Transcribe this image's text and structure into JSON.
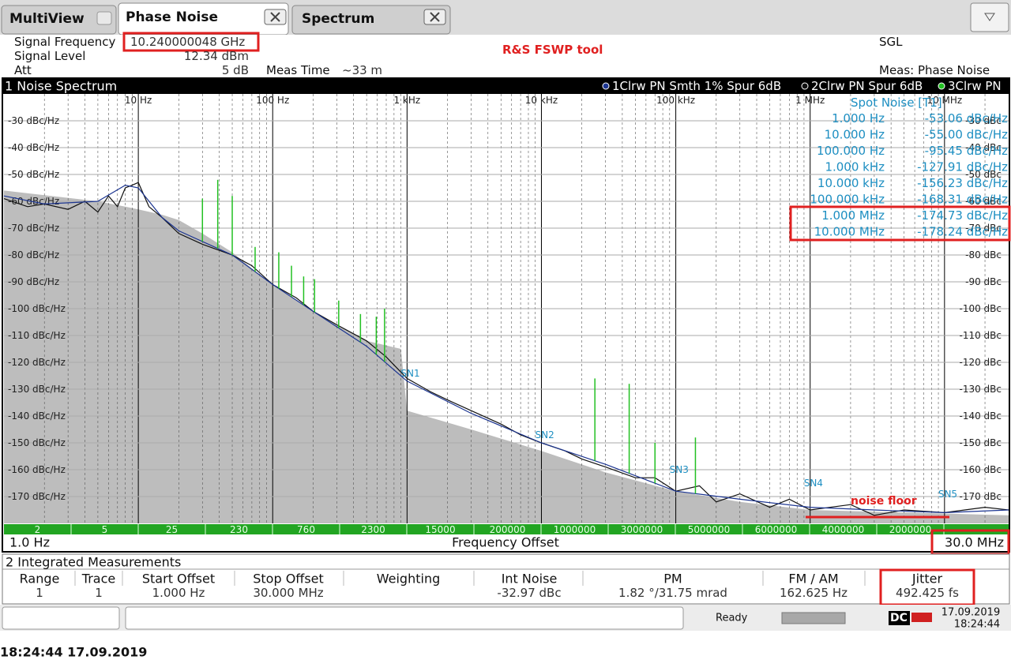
{
  "tabs": [
    "MultiView",
    "Phase Noise",
    "Spectrum"
  ],
  "header": {
    "signal_frequency_label": "Signal Frequency",
    "signal_frequency": "10.240000048 GHz",
    "signal_level_label": "Signal Level",
    "signal_level": "12.34 dBm",
    "att_label": "Att",
    "att": "5 dB",
    "meas_time_label": "Meas Time",
    "meas_time": "~33 m",
    "annotation": "R&S FSWP tool",
    "mode": "SGL",
    "meas": "Meas: Phase Noise"
  },
  "chart": {
    "type": "line",
    "title": "1 Noise Spectrum",
    "xscale": "log",
    "minor_grid": true,
    "xlim": [
      1,
      30000000
    ],
    "xticks": [
      {
        "value": 10,
        "label": "10 Hz"
      },
      {
        "value": 100,
        "label": "100 Hz"
      },
      {
        "value": 1000,
        "label": "1 kHz"
      },
      {
        "value": 10000,
        "label": "10 kHz"
      },
      {
        "value": 100000,
        "label": "100 kHz"
      },
      {
        "value": 1000000,
        "label": "1 MHz"
      },
      {
        "value": 10000000,
        "label": "10 MHz"
      }
    ],
    "ylim": [
      -180,
      -20
    ],
    "yticks": [
      {
        "value": -30,
        "label": "-30 dBc/Hz"
      },
      {
        "value": -40,
        "label": "-40 dBc/Hz"
      },
      {
        "value": -50,
        "label": "-50 dBc/Hz"
      },
      {
        "value": -60,
        "label": "-60 dBc/Hz"
      },
      {
        "value": -70,
        "label": "-70 dBc/Hz"
      },
      {
        "value": -80,
        "label": "-80 dBc/Hz"
      },
      {
        "value": -90,
        "label": "-90 dBc/Hz"
      },
      {
        "value": -100,
        "label": "-100 dBc/Hz"
      },
      {
        "value": -110,
        "label": "-110 dBc/Hz"
      },
      {
        "value": -120,
        "label": "-120 dBc/Hz"
      },
      {
        "value": -130,
        "label": "-130 dBc/Hz"
      },
      {
        "value": -140,
        "label": "-140 dBc/Hz"
      },
      {
        "value": -150,
        "label": "-150 dBc/Hz"
      },
      {
        "value": -160,
        "label": "-160 dBc/Hz"
      },
      {
        "value": -170,
        "label": "-170 dBc/Hz"
      }
    ],
    "y2ticks": [
      {
        "value": -30,
        "label": "-30 dBc"
      },
      {
        "value": -40,
        "label": "-40 dBc"
      },
      {
        "value": -50,
        "label": "-50 dBc"
      },
      {
        "value": -60,
        "label": "-60 dBc"
      },
      {
        "value": -70,
        "label": "-70 dBc"
      },
      {
        "value": -80,
        "label": "-80 dBc"
      },
      {
        "value": -90,
        "label": "-90 dBc"
      },
      {
        "value": -100,
        "label": "-100 dBc"
      },
      {
        "value": -110,
        "label": "-110 dBc"
      },
      {
        "value": -120,
        "label": "-120 dBc"
      },
      {
        "value": -130,
        "label": "-130 dBc"
      },
      {
        "value": -140,
        "label": "-140 dBc"
      },
      {
        "value": -150,
        "label": "-150 dBc"
      },
      {
        "value": -160,
        "label": "-160 dBc"
      },
      {
        "value": -170,
        "label": "-170 dBc"
      }
    ],
    "area": {
      "color": "#bdbdbd",
      "x": [
        1,
        5,
        8,
        10,
        15,
        20,
        30,
        50,
        70,
        100,
        150,
        200,
        300,
        500,
        900,
        1000,
        3000,
        10000,
        30000,
        100000,
        300000,
        1000000,
        30000000
      ],
      "values": [
        -56,
        -60,
        -62,
        -63,
        -65,
        -67,
        -72,
        -79,
        -85,
        -91,
        -97,
        -101,
        -106,
        -112,
        -115,
        -138,
        -145,
        -153,
        -161,
        -168,
        -172,
        -175,
        -177
      ]
    },
    "series": [
      {
        "name": "1Clrw PN Smth 1% Spur 6dB",
        "color": "#1c3591",
        "x": [
          1,
          2,
          5,
          8,
          10,
          15,
          20,
          50,
          100,
          200,
          500,
          1000,
          3000,
          10000,
          30000,
          100000,
          300000,
          1000000,
          3000000,
          10000000,
          30000000
        ],
        "values": [
          -58,
          -61,
          -60,
          -54,
          -55,
          -66,
          -71,
          -80,
          -91,
          -101,
          -114,
          -127,
          -139,
          -150,
          -158,
          -168,
          -171,
          -174,
          -175,
          -176,
          -175
        ]
      },
      {
        "name": "2Clrw PN Spur 6dB",
        "color": "#111111",
        "x": [
          1,
          1.5,
          2,
          3,
          4,
          5,
          6,
          7,
          8,
          9,
          10,
          12,
          15,
          20,
          30,
          50,
          70,
          100,
          150,
          200,
          300,
          500,
          700,
          1000,
          1500,
          2000,
          3000,
          5000,
          7000,
          10000,
          15000,
          20000,
          30000,
          50000,
          70000,
          100000,
          150000,
          200000,
          300000,
          500000,
          700000,
          1000000,
          2000000,
          3000000,
          5000000,
          10000000,
          20000000,
          30000000
        ],
        "values": [
          -59,
          -62,
          -61,
          -63,
          -60,
          -64,
          -58,
          -62,
          -55,
          -54,
          -53,
          -62,
          -66,
          -72,
          -76,
          -80,
          -84,
          -91,
          -96,
          -101,
          -106,
          -112,
          -118,
          -126,
          -131,
          -134,
          -138,
          -143,
          -147,
          -150,
          -153,
          -156,
          -159,
          -163,
          -163,
          -168,
          -166,
          -172,
          -169,
          -174,
          -171,
          -175,
          -173,
          -177,
          -175,
          -176,
          -174,
          -175
        ]
      },
      {
        "name": "3Clrw PN",
        "color": "#22c022",
        "kind": "spur",
        "x": [
          30,
          39,
          50,
          74,
          111,
          138,
          170,
          205,
          310,
          450,
          590,
          680,
          25000,
          45000,
          70000,
          140000
        ],
        "values": [
          -59,
          -52,
          -58,
          -77,
          -79,
          -84,
          -88,
          -89,
          -97,
          -102,
          -103,
          -100,
          -126,
          -128,
          -150,
          -148
        ]
      }
    ],
    "markers": [
      {
        "label": "SN1",
        "x": 1000,
        "y": -127
      },
      {
        "label": "SN2",
        "x": 10000,
        "y": -150
      },
      {
        "label": "SN3",
        "x": 100000,
        "y": -163
      },
      {
        "label": "SN4",
        "x": 1000000,
        "y": -168
      },
      {
        "label": "SN5",
        "x": 10000000,
        "y": -172
      }
    ],
    "spot_noise": {
      "title": "Spot Noise [T1]",
      "rows": [
        [
          "1.000 Hz",
          "-53.06 dBc/Hz"
        ],
        [
          "10.000 Hz",
          "-55.00 dBc/Hz"
        ],
        [
          "100.000 Hz",
          "-95.45 dBc/Hz"
        ],
        [
          "1.000 kHz",
          "-127.91 dBc/Hz"
        ],
        [
          "10.000 kHz",
          "-156.23 dBc/Hz"
        ],
        [
          "100.000 kHz",
          "-168.31 dBc/Hz"
        ],
        [
          "1.000 MHz",
          "-174.73 dBc/Hz"
        ],
        [
          "10.000 MHz",
          "-178.24 dBc/Hz"
        ]
      ]
    },
    "annotation": "noise floor",
    "bin_labels": [
      "2",
      "5",
      "25",
      "230",
      "760",
      "2300",
      "15000",
      "200000",
      "1000000",
      "3000000",
      "5000000",
      "6000000",
      "4000000",
      "2000000"
    ],
    "x_start": "1.0 Hz",
    "x_label": "Frequency Offset",
    "x_stop": "30.0 MHz"
  },
  "integrated": {
    "title": "2 Integrated Measurements",
    "headers": [
      "Range",
      "Trace",
      "Start Offset",
      "Stop Offset",
      "Weighting",
      "Int Noise",
      "PM",
      "FM / AM",
      "Jitter"
    ],
    "rows": [
      [
        "1",
        "1",
        "1.000 Hz",
        "30.000 MHz",
        null,
        "-32.97 dBc",
        "1.82 °/31.75 mrad",
        "162.625 Hz",
        "492.425 fs"
      ]
    ]
  },
  "status": {
    "ready": "Ready",
    "logo": "DC",
    "date": "17.09.2019",
    "time": "18:24:44"
  },
  "footer": "18:24:44 17.09.2019"
}
